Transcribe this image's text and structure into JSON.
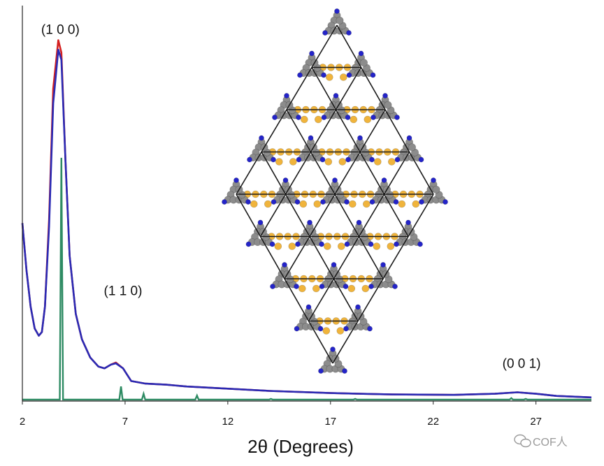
{
  "chart_data": {
    "type": "line",
    "title": "",
    "xlabel": "2θ (Degrees)",
    "ylabel": "",
    "xlim": [
      2,
      29.7
    ],
    "ylim": [
      0,
      1.07
    ],
    "xticks": [
      2,
      7,
      12,
      17,
      22,
      27
    ],
    "xtick_labels": [
      "2",
      "7",
      "12",
      "17",
      "22",
      "27"
    ],
    "grid": false,
    "legend": "none",
    "series": [
      {
        "color": "#d42020",
        "points": [
          [
            2,
            0.49
          ],
          [
            2.2,
            0.36
          ],
          [
            2.4,
            0.26
          ],
          [
            2.6,
            0.2
          ],
          [
            2.8,
            0.18
          ],
          [
            2.95,
            0.19
          ],
          [
            3.1,
            0.26
          ],
          [
            3.3,
            0.5
          ],
          [
            3.5,
            0.86
          ],
          [
            3.75,
            0.994
          ],
          [
            3.9,
            0.96
          ],
          [
            4.1,
            0.66
          ],
          [
            4.3,
            0.4
          ],
          [
            4.6,
            0.24
          ],
          [
            4.9,
            0.17
          ],
          [
            5.3,
            0.12
          ],
          [
            5.7,
            0.095
          ],
          [
            6.0,
            0.09
          ],
          [
            6.3,
            0.1
          ],
          [
            6.55,
            0.106
          ],
          [
            6.9,
            0.09
          ],
          [
            7.3,
            0.055
          ],
          [
            8,
            0.048
          ],
          [
            9,
            0.045
          ],
          [
            10,
            0.04
          ],
          [
            12,
            0.034
          ],
          [
            14,
            0.028
          ],
          [
            17,
            0.022
          ],
          [
            20,
            0.018
          ],
          [
            23,
            0.017
          ],
          [
            25,
            0.02
          ],
          [
            26.1,
            0.024
          ],
          [
            27,
            0.02
          ],
          [
            28,
            0.014
          ],
          [
            29.7,
            0.01
          ]
        ]
      },
      {
        "color": "#2a2ab4",
        "points": [
          [
            2,
            0.49
          ],
          [
            2.2,
            0.36
          ],
          [
            2.4,
            0.26
          ],
          [
            2.6,
            0.2
          ],
          [
            2.8,
            0.18
          ],
          [
            2.95,
            0.19
          ],
          [
            3.1,
            0.26
          ],
          [
            3.3,
            0.48
          ],
          [
            3.5,
            0.82
          ],
          [
            3.75,
            0.968
          ],
          [
            3.9,
            0.94
          ],
          [
            4.1,
            0.66
          ],
          [
            4.3,
            0.4
          ],
          [
            4.6,
            0.24
          ],
          [
            4.9,
            0.17
          ],
          [
            5.3,
            0.12
          ],
          [
            5.7,
            0.095
          ],
          [
            6.0,
            0.09
          ],
          [
            6.3,
            0.1
          ],
          [
            6.55,
            0.104
          ],
          [
            6.9,
            0.09
          ],
          [
            7.3,
            0.055
          ],
          [
            8,
            0.048
          ],
          [
            9,
            0.045
          ],
          [
            10,
            0.04
          ],
          [
            12,
            0.034
          ],
          [
            14,
            0.028
          ],
          [
            17,
            0.022
          ],
          [
            20,
            0.018
          ],
          [
            23,
            0.017
          ],
          [
            25,
            0.02
          ],
          [
            26.1,
            0.024
          ],
          [
            27,
            0.02
          ],
          [
            28,
            0.014
          ],
          [
            29.7,
            0.01
          ]
        ]
      },
      {
        "color": "#2e8b63",
        "type": "stick",
        "baseline": 0.004,
        "peaks": [
          [
            3.9,
            0.67
          ],
          [
            6.8,
            0.04
          ],
          [
            7.9,
            0.02
          ],
          [
            10.5,
            0.015
          ],
          [
            14.1,
            0.006
          ],
          [
            18.2,
            0.006
          ],
          [
            25.8,
            0.008
          ],
          [
            26.5,
            0.006
          ]
        ]
      }
    ],
    "annotations": [
      {
        "text": "(1 0 0)",
        "x": 3.85,
        "y": 1.0
      },
      {
        "text": "(1 1 0)",
        "x": 6.9,
        "y": 0.28
      },
      {
        "text": "(0 0 1)",
        "x": 26.3,
        "y": 0.08
      }
    ]
  },
  "watermark": "COF人",
  "inset": {
    "description_icon": "cof-lattice-structure"
  }
}
